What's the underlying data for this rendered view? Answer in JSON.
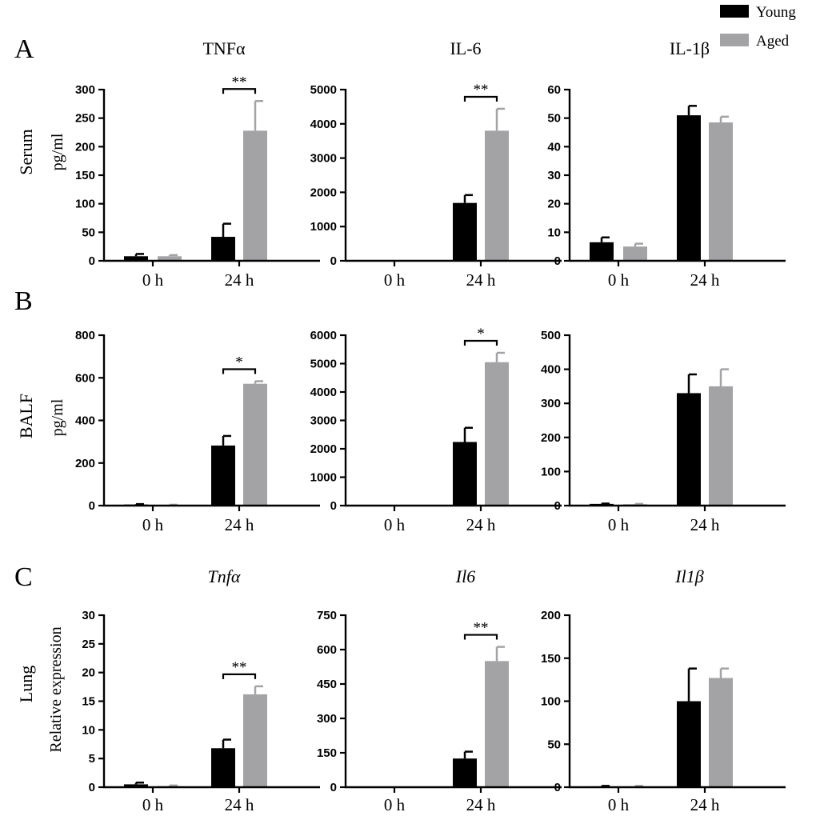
{
  "colors": {
    "young": "#000000",
    "aged": "#a3a3a6",
    "axis": "#000000"
  },
  "legend": [
    {
      "name": "Young",
      "color": "#000000"
    },
    {
      "name": "Aged",
      "color": "#a3a3a6"
    }
  ],
  "rows": [
    {
      "letter": "A",
      "label": "Serum",
      "unit": "pg/ml"
    },
    {
      "letter": "B",
      "label": "BALF",
      "unit": "pg/ml"
    },
    {
      "letter": "C",
      "label": "Lung",
      "unit": "Relative expression"
    }
  ],
  "chart_data": [
    {
      "type": "bar",
      "panel": "A",
      "row": 0,
      "col": 0,
      "title": "TNFα",
      "italic": false,
      "categories": [
        "0 h",
        "24 h"
      ],
      "ylim": [
        0,
        300
      ],
      "yticks": [
        0,
        50,
        100,
        150,
        200,
        250,
        300
      ],
      "series": [
        {
          "name": "Young",
          "values": [
            8,
            42
          ],
          "errors": [
            4,
            23
          ]
        },
        {
          "name": "Aged",
          "values": [
            8,
            228
          ],
          "errors": [
            2,
            52
          ]
        }
      ],
      "significance": [
        {
          "category": "24 h",
          "label": "**"
        }
      ]
    },
    {
      "type": "bar",
      "panel": "A",
      "row": 0,
      "col": 1,
      "title": "IL-6",
      "italic": false,
      "categories": [
        "0 h",
        "24 h"
      ],
      "ylim": [
        0,
        5000
      ],
      "yticks": [
        0,
        1000,
        2000,
        3000,
        4000,
        5000
      ],
      "series": [
        {
          "name": "Young",
          "values": [
            10,
            1690
          ],
          "errors": [
            0,
            230
          ]
        },
        {
          "name": "Aged",
          "values": [
            10,
            3800
          ],
          "errors": [
            0,
            640
          ]
        }
      ],
      "significance": [
        {
          "category": "24 h",
          "label": "**"
        }
      ]
    },
    {
      "type": "bar",
      "panel": "A",
      "row": 0,
      "col": 2,
      "title": "IL-1β",
      "italic": false,
      "categories": [
        "0 h",
        "24 h"
      ],
      "ylim": [
        0,
        60
      ],
      "yticks": [
        0,
        10,
        20,
        30,
        40,
        50,
        60
      ],
      "series": [
        {
          "name": "Young",
          "values": [
            6.5,
            51
          ],
          "errors": [
            1.7,
            3.3
          ]
        },
        {
          "name": "Aged",
          "values": [
            5,
            48.5
          ],
          "errors": [
            1,
            2
          ]
        }
      ],
      "significance": []
    },
    {
      "type": "bar",
      "panel": "B",
      "row": 1,
      "col": 0,
      "title": "",
      "italic": false,
      "categories": [
        "0 h",
        "24 h"
      ],
      "ylim": [
        0,
        800
      ],
      "yticks": [
        0,
        200,
        400,
        600,
        800
      ],
      "series": [
        {
          "name": "Young",
          "values": [
            5,
            282
          ],
          "errors": [
            2,
            45
          ]
        },
        {
          "name": "Aged",
          "values": [
            3,
            572
          ],
          "errors": [
            1,
            12
          ]
        }
      ],
      "significance": [
        {
          "category": "24 h",
          "label": "*"
        }
      ]
    },
    {
      "type": "bar",
      "panel": "B",
      "row": 1,
      "col": 1,
      "title": "",
      "italic": false,
      "categories": [
        "0 h",
        "24 h"
      ],
      "ylim": [
        0,
        6000
      ],
      "yticks": [
        0,
        1000,
        2000,
        3000,
        4000,
        5000,
        6000
      ],
      "series": [
        {
          "name": "Young",
          "values": [
            10,
            2240
          ],
          "errors": [
            0,
            500
          ]
        },
        {
          "name": "Aged",
          "values": [
            10,
            5050
          ],
          "errors": [
            0,
            330
          ]
        }
      ],
      "significance": [
        {
          "category": "24 h",
          "label": "*"
        }
      ]
    },
    {
      "type": "bar",
      "panel": "B",
      "row": 1,
      "col": 2,
      "title": "",
      "italic": false,
      "categories": [
        "0 h",
        "24 h"
      ],
      "ylim": [
        0,
        500
      ],
      "yticks": [
        0,
        100,
        200,
        300,
        400,
        500
      ],
      "series": [
        {
          "name": "Young",
          "values": [
            5,
            330
          ],
          "errors": [
            1,
            55
          ]
        },
        {
          "name": "Aged",
          "values": [
            4,
            350
          ],
          "errors": [
            1,
            50
          ]
        }
      ],
      "significance": []
    },
    {
      "type": "bar",
      "panel": "C",
      "row": 2,
      "col": 0,
      "title": "Tnfα",
      "italic": true,
      "categories": [
        "0 h",
        "24 h"
      ],
      "ylim": [
        0,
        30
      ],
      "yticks": [
        0,
        5,
        10,
        15,
        20,
        25,
        30
      ],
      "series": [
        {
          "name": "Young",
          "values": [
            0.5,
            6.8
          ],
          "errors": [
            0.3,
            1.5
          ]
        },
        {
          "name": "Aged",
          "values": [
            0.2,
            16.2
          ],
          "errors": [
            0.1,
            1.4
          ]
        }
      ],
      "significance": [
        {
          "category": "24 h",
          "label": "**"
        }
      ]
    },
    {
      "type": "bar",
      "panel": "C",
      "row": 2,
      "col": 1,
      "title": "Il6",
      "italic": true,
      "categories": [
        "0 h",
        "24 h"
      ],
      "ylim": [
        0,
        750
      ],
      "yticks": [
        0,
        150,
        300,
        450,
        600,
        750
      ],
      "series": [
        {
          "name": "Young",
          "values": [
            1,
            125
          ],
          "errors": [
            0,
            30
          ]
        },
        {
          "name": "Aged",
          "values": [
            1,
            550
          ],
          "errors": [
            0,
            62
          ]
        }
      ],
      "significance": [
        {
          "category": "24 h",
          "label": "**"
        }
      ]
    },
    {
      "type": "bar",
      "panel": "C",
      "row": 2,
      "col": 2,
      "title": "Il1β",
      "italic": true,
      "categories": [
        "0 h",
        "24 h"
      ],
      "ylim": [
        0,
        200
      ],
      "yticks": [
        0,
        50,
        100,
        150,
        200
      ],
      "series": [
        {
          "name": "Young",
          "values": [
            1,
            100
          ],
          "errors": [
            0.5,
            38
          ]
        },
        {
          "name": "Aged",
          "values": [
            1,
            127
          ],
          "errors": [
            0.5,
            11
          ]
        }
      ],
      "significance": []
    }
  ]
}
